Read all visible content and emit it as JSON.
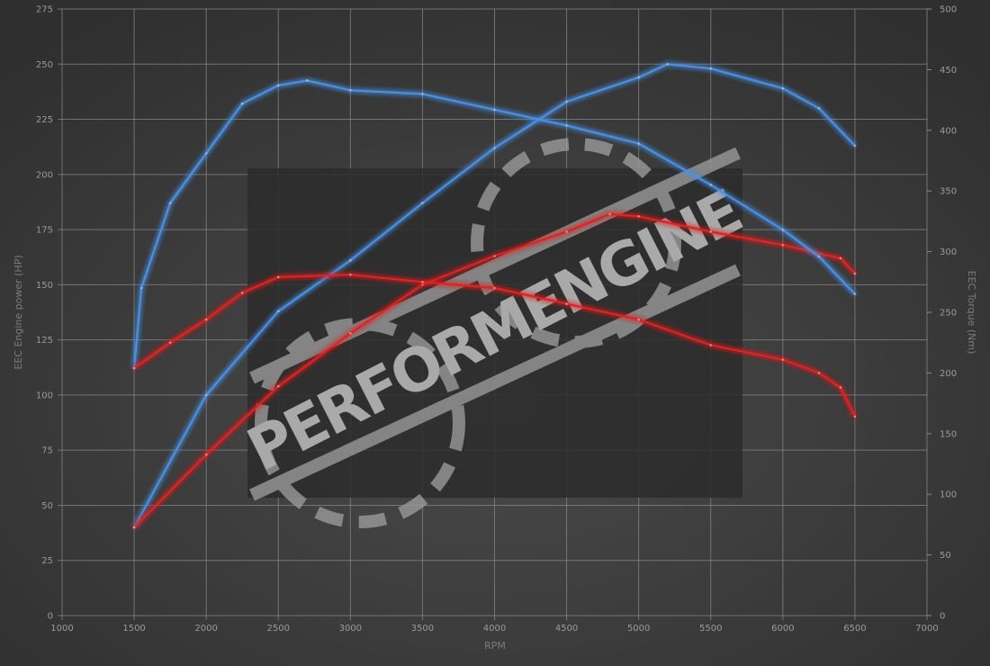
{
  "chart_data": {
    "type": "line",
    "title": "",
    "xlabel": "RPM",
    "ylabel_left": "EEC Engine power (HP)",
    "ylabel_right": "EEC Torque (Nm)",
    "xlim": [
      1000,
      7000
    ],
    "ylim_left": [
      0,
      275
    ],
    "ylim_right": [
      0,
      500
    ],
    "x_ticks": [
      1000,
      1500,
      2000,
      2500,
      3000,
      3500,
      4000,
      4500,
      5000,
      5500,
      6000,
      6500,
      7000
    ],
    "y_ticks_left": [
      0,
      25,
      50,
      75,
      100,
      125,
      150,
      175,
      200,
      225,
      250,
      275
    ],
    "y_ticks_right": [
      0,
      50,
      100,
      150,
      200,
      250,
      300,
      350,
      400,
      450,
      500
    ],
    "grid": true,
    "watermark": "PERFORMENGINE",
    "colors": {
      "background": "#3b3b3b",
      "grid": "#8c8c8c",
      "blue": "#4a90e2",
      "red": "#e02424"
    },
    "series": [
      {
        "axis": "left",
        "color": "blue",
        "x": [
          1500,
          2000,
          2500,
          3000,
          3500,
          4000,
          4500,
          5000,
          5200,
          5500,
          6000,
          6250,
          6500
        ],
        "y": [
          40,
          100,
          138,
          161,
          187,
          212,
          233,
          244,
          250,
          248,
          239,
          230,
          213
        ]
      },
      {
        "axis": "left",
        "color": "red",
        "x": [
          1500,
          2000,
          2500,
          3000,
          3500,
          4000,
          4500,
          4800,
          5000,
          5500,
          6000,
          6400,
          6500
        ],
        "y": [
          40,
          73,
          104,
          128,
          150,
          163,
          174,
          182,
          181,
          174,
          168,
          162,
          155
        ]
      },
      {
        "axis": "right",
        "color": "blue",
        "x": [
          1500,
          1550,
          1750,
          2000,
          2250,
          2500,
          2700,
          3000,
          3500,
          4000,
          4500,
          5000,
          5500,
          6000,
          6250,
          6500
        ],
        "y": [
          204,
          270,
          340,
          381,
          422,
          437,
          441,
          433,
          430,
          417,
          404,
          389,
          355,
          318,
          296,
          265
        ]
      },
      {
        "axis": "right",
        "color": "red",
        "x": [
          1500,
          1750,
          2000,
          2250,
          2500,
          3000,
          3500,
          4000,
          4500,
          5000,
          5500,
          6000,
          6250,
          6400,
          6500
        ],
        "y": [
          204,
          225,
          244,
          266,
          279,
          281,
          275,
          270,
          257,
          244,
          223,
          211,
          200,
          188,
          164
        ]
      }
    ]
  }
}
